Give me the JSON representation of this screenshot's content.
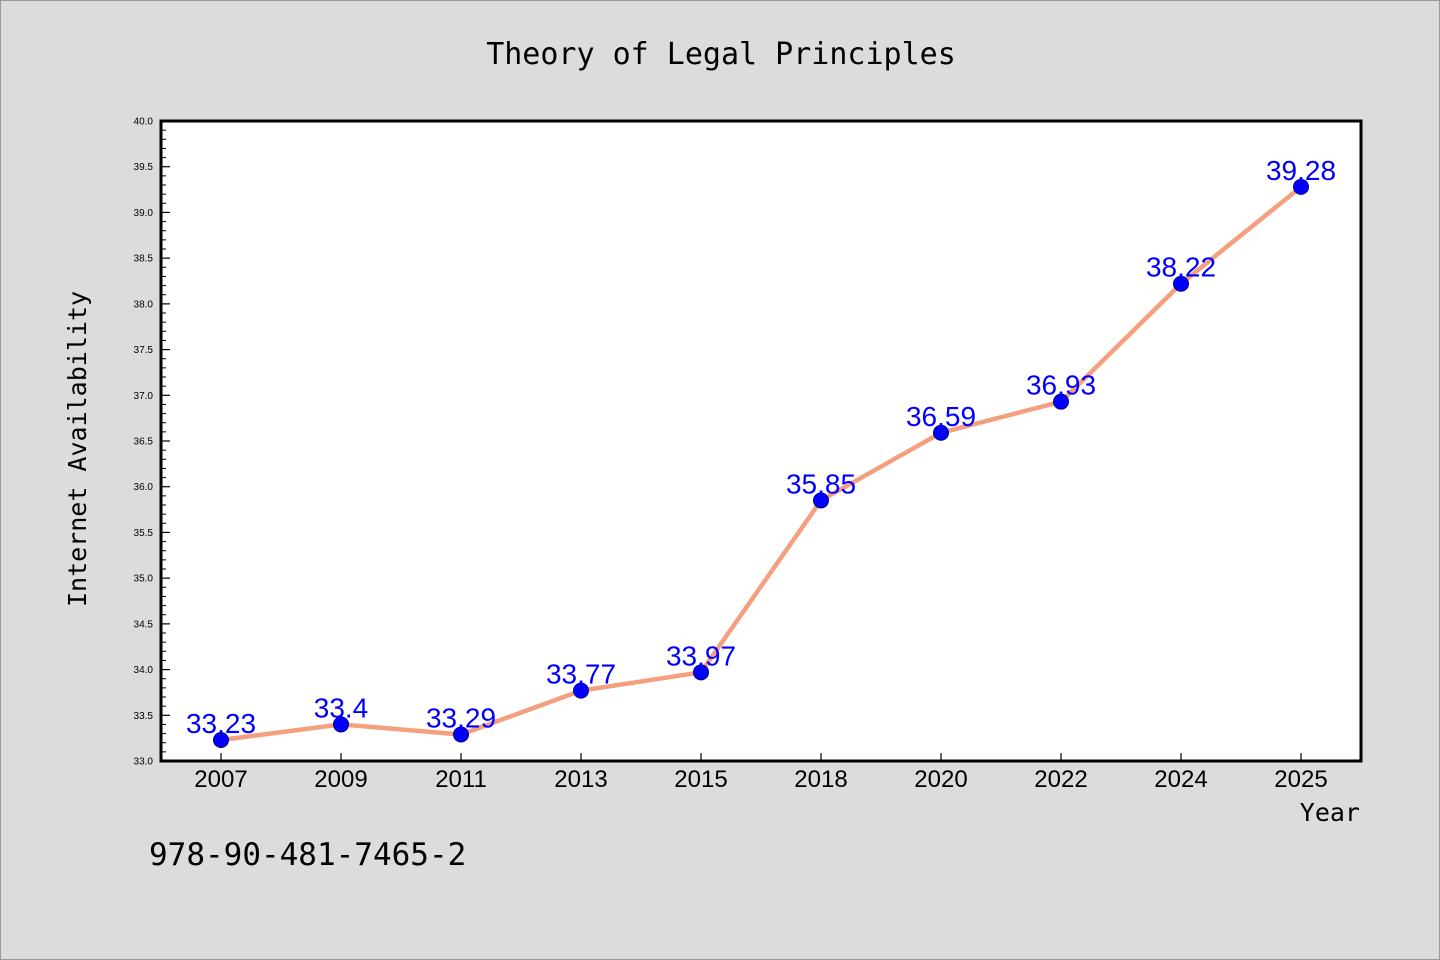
{
  "chart_data": {
    "type": "line",
    "title": "Theory of Legal Principles",
    "xlabel": "Year",
    "ylabel": "Internet Availability",
    "categories": [
      "2007",
      "2009",
      "2011",
      "2013",
      "2015",
      "2018",
      "2020",
      "2022",
      "2024",
      "2025"
    ],
    "series": [
      {
        "values": [
          33.23,
          33.4,
          33.29,
          33.77,
          33.97,
          35.85,
          36.59,
          36.93,
          38.22,
          39.28
        ],
        "labels": [
          "33.23",
          "33.4",
          "33.29",
          "33.77",
          "33.97",
          "35.85",
          "36.59",
          "36.93",
          "38.22",
          "39.28"
        ],
        "line_color": "#f4a07f",
        "marker_color": "#0000ff"
      }
    ],
    "ylim": [
      33.0,
      40.0
    ],
    "yticks": [
      "33.0",
      "33.5",
      "34.0",
      "34.5",
      "35.0",
      "35.5",
      "36.0",
      "36.5",
      "37.0",
      "37.5",
      "38.0",
      "38.5",
      "39.0",
      "39.5",
      "40.0"
    ],
    "grid": false,
    "label_color": "#0000ff"
  },
  "footer": {
    "isbn": "978-90-481-7465-2"
  },
  "colors": {
    "background": "#dcdcdc",
    "plot_background": "#ffffff",
    "axis": "#000000"
  }
}
